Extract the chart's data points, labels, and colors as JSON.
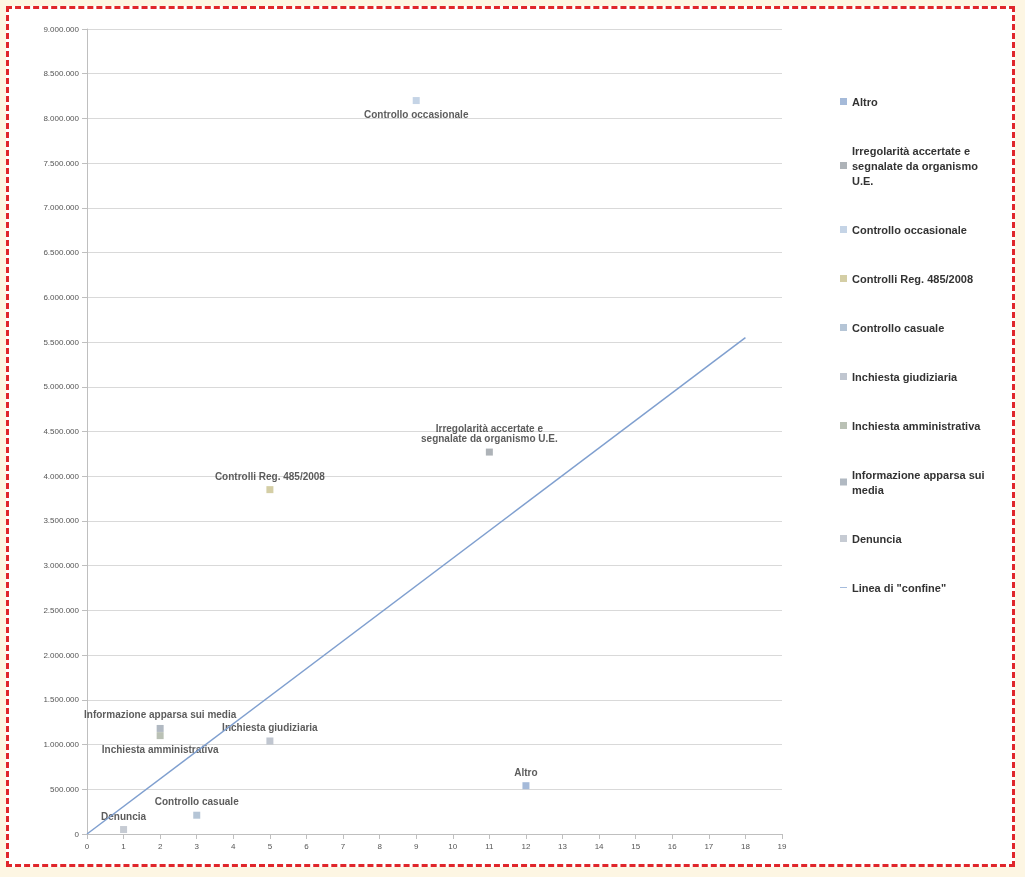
{
  "chart_data": {
    "type": "scatter",
    "legend": "right",
    "grid": "y",
    "marker": "square",
    "xlim": [
      0,
      19
    ],
    "xticks": [
      0,
      1,
      2,
      3,
      4,
      5,
      6,
      7,
      8,
      9,
      10,
      11,
      12,
      13,
      14,
      15,
      16,
      17,
      18,
      19
    ],
    "ylim": [
      0,
      9000000
    ],
    "yticks": [
      {
        "value": 0,
        "label": "0"
      },
      {
        "value": 500000,
        "label": "500.000"
      },
      {
        "value": 1000000,
        "label": "1.000.000"
      },
      {
        "value": 1500000,
        "label": "1.500.000"
      },
      {
        "value": 2000000,
        "label": "2.000.000"
      },
      {
        "value": 2500000,
        "label": "2.500.000"
      },
      {
        "value": 3000000,
        "label": "3.000.000"
      },
      {
        "value": 3500000,
        "label": "3.500.000"
      },
      {
        "value": 4000000,
        "label": "4.000.000"
      },
      {
        "value": 4500000,
        "label": "4.500.000"
      },
      {
        "value": 5000000,
        "label": "5.000.000"
      },
      {
        "value": 5500000,
        "label": "5.500.000"
      },
      {
        "value": 6000000,
        "label": "6.000.000"
      },
      {
        "value": 6500000,
        "label": "6.500.000"
      },
      {
        "value": 7000000,
        "label": "7.000.000"
      },
      {
        "value": 7500000,
        "label": "7.500.000"
      },
      {
        "value": 8000000,
        "label": "8.000.000"
      },
      {
        "value": 8500000,
        "label": "8.500.000"
      },
      {
        "value": 9000000,
        "label": "9.000.000"
      }
    ],
    "series": [
      {
        "name": "Altro",
        "color": "#8fa9cf",
        "x": [
          12
        ],
        "values": [
          540000
        ]
      },
      {
        "name": "Irregolarità accertate e segnalate da organismo U.E.",
        "color": "#9aa0a6",
        "x": [
          11
        ],
        "values": [
          4270000
        ]
      },
      {
        "name": "Controllo occasionale",
        "color": "#b7c9e0",
        "x": [
          9
        ],
        "values": [
          8200000
        ]
      },
      {
        "name": "Controlli Reg. 485/2008",
        "color": "#c9c28f",
        "x": [
          5
        ],
        "values": [
          3850000
        ]
      },
      {
        "name": "Controllo casuale",
        "color": "#a3b6cc",
        "x": [
          3
        ],
        "values": [
          210000
        ]
      },
      {
        "name": "Inchiesta giudiziaria",
        "color": "#b0b8c4",
        "x": [
          5
        ],
        "values": [
          1040000
        ]
      },
      {
        "name": "Inchiesta amministrativa",
        "color": "#a9b1a3",
        "x": [
          2
        ],
        "values": [
          1100000
        ]
      },
      {
        "name": "Informazione apparsa sui media",
        "color": "#9ea7b3",
        "x": [
          2
        ],
        "values": [
          1180000
        ]
      },
      {
        "name": "Denuncia",
        "color": "#b8bec8",
        "x": [
          1
        ],
        "values": [
          50000
        ]
      },
      {
        "name": "Linea di \"confine\"",
        "type": "line",
        "color": "#7f9fcf",
        "marker": "none",
        "x": [
          0,
          18
        ],
        "values": [
          0,
          5550000
        ]
      }
    ]
  }
}
